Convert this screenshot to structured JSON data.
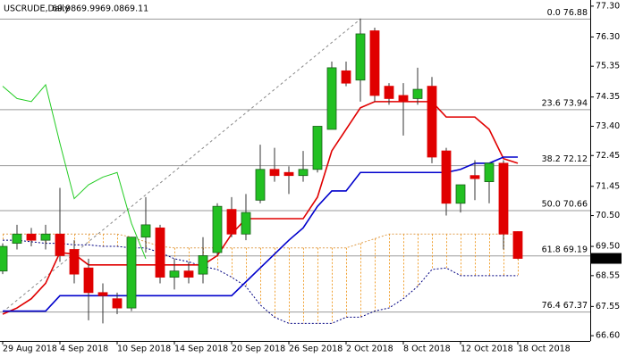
{
  "chart_data": {
    "type": "candlestick",
    "symbol": "USCRUDE,Daily",
    "categories": [
      "29 Aug 2018",
      null,
      null,
      null,
      "4 Sep 2018",
      null,
      null,
      null,
      "10 Sep 2018",
      null,
      null,
      null,
      "14 Sep 2018",
      null,
      null,
      null,
      "20 Sep 2018",
      null,
      null,
      null,
      "26 Sep 2018",
      null,
      null,
      null,
      "2 Oct 2018",
      null,
      null,
      null,
      "8 Oct 2018",
      null,
      null,
      null,
      "12 Oct 2018",
      null,
      null,
      null,
      "18 Oct 2018"
    ],
    "open": [
      68.7,
      69.6,
      69.9,
      69.7,
      69.9,
      69.4,
      68.8,
      68.0,
      67.8,
      67.5,
      69.8,
      70.1,
      68.5,
      68.7,
      68.6,
      69.3,
      70.7,
      69.9,
      71.0,
      72.0,
      71.9,
      71.8,
      72.0,
      73.3,
      75.2,
      74.9,
      76.5,
      74.7,
      74.4,
      74.3,
      74.7,
      72.6,
      70.9,
      71.8,
      71.6,
      72.2,
      69.98
    ],
    "high": [
      69.6,
      70.2,
      70.1,
      70.2,
      71.4,
      69.7,
      69.1,
      68.3,
      68.0,
      69.8,
      71.1,
      70.2,
      69.1,
      69.0,
      69.8,
      70.9,
      71.1,
      71.2,
      72.8,
      72.7,
      72.1,
      72.6,
      73.4,
      75.5,
      75.5,
      76.9,
      76.6,
      74.8,
      74.8,
      75.3,
      75.0,
      72.7,
      71.5,
      72.3,
      72.2,
      72.3,
      69.99
    ],
    "low": [
      68.6,
      69.4,
      69.5,
      69.4,
      69.0,
      68.3,
      67.1,
      67.0,
      67.3,
      67.4,
      69.3,
      68.3,
      68.1,
      68.3,
      68.3,
      69.2,
      69.8,
      69.7,
      70.9,
      71.6,
      71.2,
      71.6,
      71.9,
      73.3,
      74.7,
      74.2,
      74.2,
      74.1,
      73.1,
      74.1,
      72.2,
      70.5,
      70.6,
      71.0,
      70.9,
      69.4,
      69.08
    ],
    "close": [
      69.5,
      69.9,
      69.7,
      69.9,
      69.2,
      68.6,
      68.0,
      67.9,
      67.5,
      69.8,
      70.2,
      68.5,
      68.7,
      68.5,
      69.2,
      70.8,
      69.9,
      70.6,
      72.0,
      71.8,
      71.8,
      72.0,
      73.4,
      75.3,
      74.8,
      76.4,
      74.4,
      74.3,
      74.2,
      74.6,
      72.4,
      70.9,
      71.5,
      71.7,
      72.2,
      69.9,
      69.11
    ],
    "up_color": "#22c022",
    "down_color": "#e00000",
    "lines": [
      {
        "color": "#e00000",
        "values": [
          67.3,
          67.5,
          67.8,
          68.3,
          69.3,
          69.25,
          68.9,
          68.9,
          68.9,
          68.9,
          68.9,
          68.9,
          68.9,
          68.9,
          68.9,
          69.2,
          69.9,
          70.4,
          70.4,
          70.4,
          70.4,
          70.4,
          71.1,
          72.6,
          73.3,
          74.0,
          74.2,
          74.2,
          74.2,
          74.2,
          74.2,
          73.7,
          73.7,
          73.7,
          73.3,
          72.35,
          72.2
        ]
      },
      {
        "color": "#0000cc",
        "values": [
          67.4,
          67.4,
          67.4,
          67.4,
          67.9,
          67.9,
          67.9,
          67.9,
          67.9,
          67.9,
          67.9,
          67.9,
          67.9,
          67.9,
          67.9,
          67.9,
          67.9,
          68.35,
          68.8,
          69.25,
          69.7,
          70.1,
          70.8,
          71.3,
          71.3,
          71.9,
          71.9,
          71.9,
          71.9,
          71.9,
          71.9,
          71.9,
          72.0,
          72.2,
          72.2,
          72.4,
          72.4
        ]
      },
      {
        "color": "#22cc22",
        "values": [
          74.7,
          74.3,
          74.2,
          74.75,
          72.85,
          71.05,
          71.5,
          71.75,
          71.9,
          70.25,
          69.1,
          null,
          null,
          null,
          null,
          null,
          null,
          null,
          null,
          null,
          null,
          null,
          null,
          null,
          null,
          null,
          null,
          null,
          null,
          null,
          null,
          null,
          null,
          null,
          null,
          null,
          null
        ]
      }
    ],
    "cloud": {
      "a_color": "#e0a050",
      "b_color": "#000080",
      "fill_color": "#f0a030",
      "span_a": [
        69.9,
        69.9,
        69.9,
        69.9,
        69.9,
        69.9,
        69.9,
        69.9,
        69.9,
        69.8,
        69.65,
        69.5,
        69.45,
        69.45,
        69.45,
        69.45,
        69.45,
        69.45,
        69.45,
        69.45,
        69.45,
        69.45,
        69.45,
        69.45,
        69.45,
        69.6,
        69.75,
        69.9,
        69.9,
        69.9,
        69.9,
        69.9,
        69.9,
        69.9,
        69.9,
        69.9,
        69.9
      ],
      "span_b": [
        69.7,
        69.7,
        69.65,
        69.6,
        69.6,
        69.55,
        69.55,
        69.5,
        69.5,
        69.45,
        69.45,
        69.3,
        69.1,
        69.0,
        68.85,
        68.75,
        68.5,
        68.2,
        67.6,
        67.2,
        67.0,
        67.0,
        67.0,
        67.0,
        67.2,
        67.2,
        67.4,
        67.5,
        67.8,
        68.2,
        68.75,
        68.8,
        68.55,
        68.55,
        68.55,
        68.55,
        68.55
      ]
    },
    "fib": {
      "color": "#9a9a9a",
      "levels": [
        {
          "value": 76.88,
          "label": "0.0 76.88"
        },
        {
          "value": 73.94,
          "label": "23.6 73.94"
        },
        {
          "value": 72.12,
          "label": "38.2 72.12"
        },
        {
          "value": 70.66,
          "label": "50.0 70.66"
        },
        {
          "value": 69.19,
          "label": "61.8 69.19"
        },
        {
          "value": 67.37,
          "label": "76.4 67.37"
        }
      ]
    },
    "ylim": [
      66.43,
      77.5
    ],
    "yticks": [
      {
        "value": 77.3,
        "label": "77.30"
      },
      {
        "value": 76.3,
        "label": "76.30"
      },
      75.35,
      74.35,
      {
        "value": 73.4,
        "label": "73.40"
      },
      72.45,
      71.45,
      {
        "value": 70.5,
        "label": "70.50"
      },
      {
        "value": 69.5,
        "label": "69.50"
      },
      68.55,
      67.55,
      {
        "value": 66.6,
        "label": "66.60"
      }
    ]
  }
}
